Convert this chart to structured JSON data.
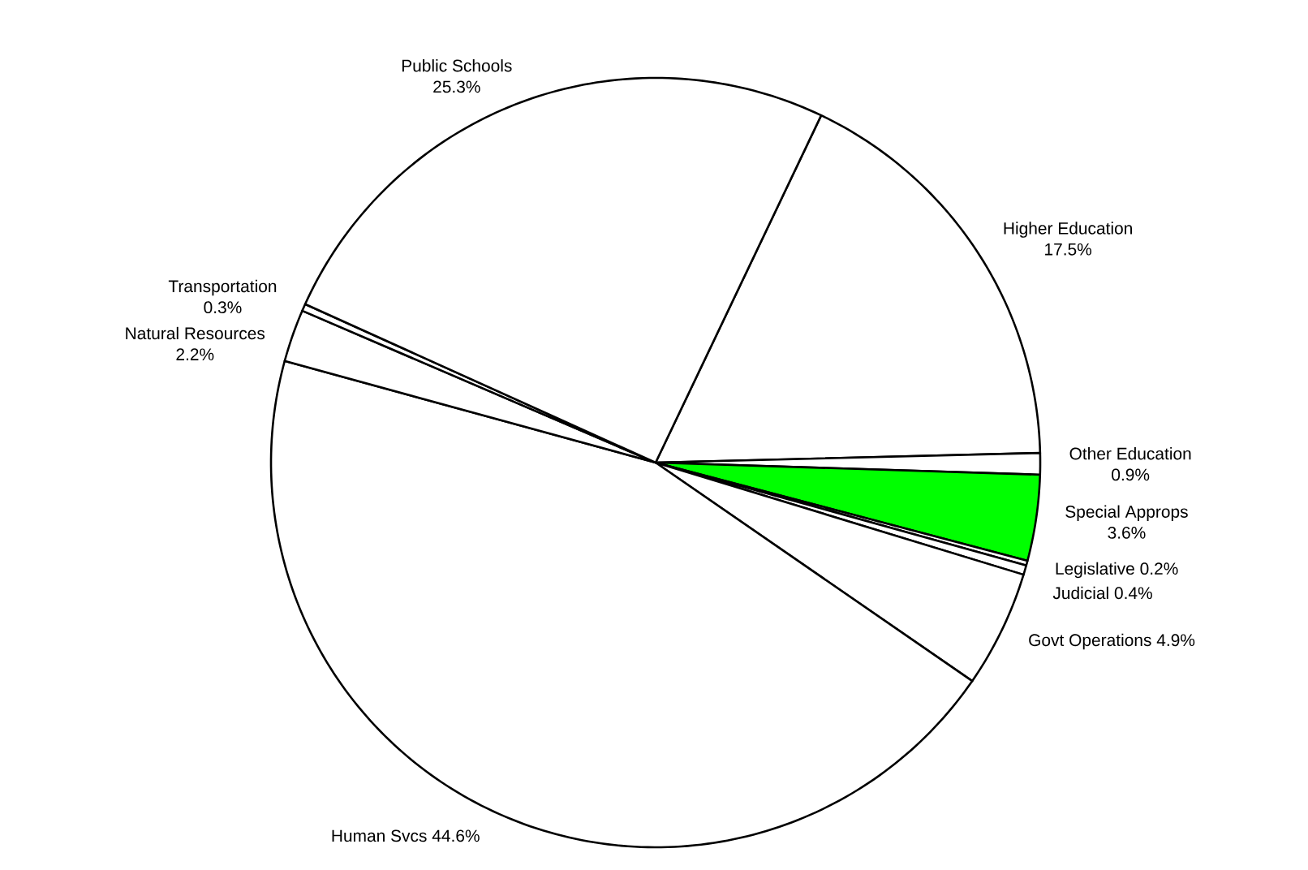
{
  "chart_data": {
    "type": "pie",
    "categories": [
      "Higher Education",
      "Other Education",
      "Special Approps",
      "Legislative",
      "Judicial",
      "Govt Operations",
      "Human Svcs",
      "Natural Resources",
      "Transportation",
      "Public Schools"
    ],
    "values": [
      17.5,
      0.9,
      3.6,
      0.2,
      0.4,
      4.9,
      44.6,
      2.2,
      0.3,
      25.3
    ],
    "colors": [
      "#ffffff",
      "#ffffff",
      "#00ff00",
      "#ffffff",
      "#ffffff",
      "#ffffff",
      "#ffffff",
      "#ffffff",
      "#ffffff",
      "#ffffff"
    ],
    "data_labels": true,
    "value_labels": [
      "17.5%",
      "0.9%",
      "3.6%",
      "0.2%",
      "0.4%",
      "4.9%",
      "44.6%",
      "2.2%",
      "0.3%",
      "25.3%"
    ]
  }
}
